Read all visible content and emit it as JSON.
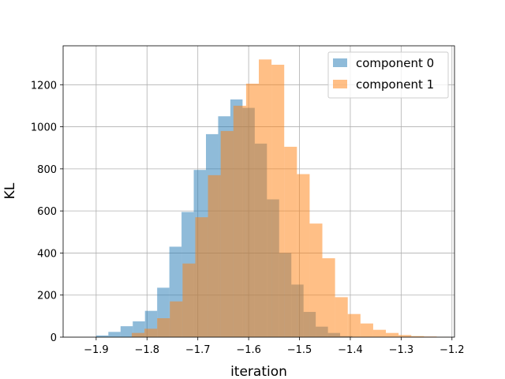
{
  "chart_data": {
    "type": "bar",
    "title": "",
    "xlabel": "iteration",
    "ylabel": "KL",
    "xlim": [
      -1.965,
      -1.195
    ],
    "ylim": [
      0,
      1385
    ],
    "grid": true,
    "legend_position": "top-right",
    "xticks": [
      -1.9,
      -1.8,
      -1.7,
      -1.6,
      -1.5,
      -1.4,
      -1.3,
      -1.2
    ],
    "xtick_labels": [
      "−1.9",
      "−1.8",
      "−1.7",
      "−1.6",
      "−1.5",
      "−1.4",
      "−1.3",
      "−1.2"
    ],
    "yticks": [
      0,
      200,
      400,
      600,
      800,
      1000,
      1200
    ],
    "ytick_labels": [
      "0",
      "200",
      "400",
      "600",
      "800",
      "1000",
      "1200"
    ],
    "series": [
      {
        "name": "component 0",
        "color": "#1f77b4",
        "opacity": 0.5,
        "bin_edges": [
          -1.9,
          -1.876,
          -1.852,
          -1.828,
          -1.804,
          -1.78,
          -1.756,
          -1.732,
          -1.708,
          -1.684,
          -1.66,
          -1.636,
          -1.612,
          -1.588,
          -1.564,
          -1.54,
          -1.516,
          -1.492,
          -1.468,
          -1.444,
          -1.42,
          -1.396
        ],
        "values": [
          8,
          25,
          52,
          75,
          125,
          235,
          430,
          595,
          795,
          965,
          1050,
          1130,
          1090,
          920,
          655,
          400,
          250,
          120,
          50,
          20,
          5
        ]
      },
      {
        "name": "component 1",
        "color": "#ff7f0e",
        "opacity": 0.5,
        "bin_edges": [
          -1.83,
          -1.805,
          -1.78,
          -1.755,
          -1.73,
          -1.705,
          -1.68,
          -1.655,
          -1.63,
          -1.605,
          -1.58,
          -1.555,
          -1.53,
          -1.505,
          -1.48,
          -1.455,
          -1.43,
          -1.405,
          -1.38,
          -1.355,
          -1.33,
          -1.305,
          -1.28,
          -1.255,
          -1.23,
          -1.205
        ],
        "values": [
          20,
          40,
          90,
          170,
          350,
          570,
          770,
          980,
          1100,
          1205,
          1320,
          1295,
          905,
          775,
          540,
          375,
          190,
          110,
          65,
          35,
          20,
          10,
          5,
          3,
          1
        ]
      }
    ]
  }
}
